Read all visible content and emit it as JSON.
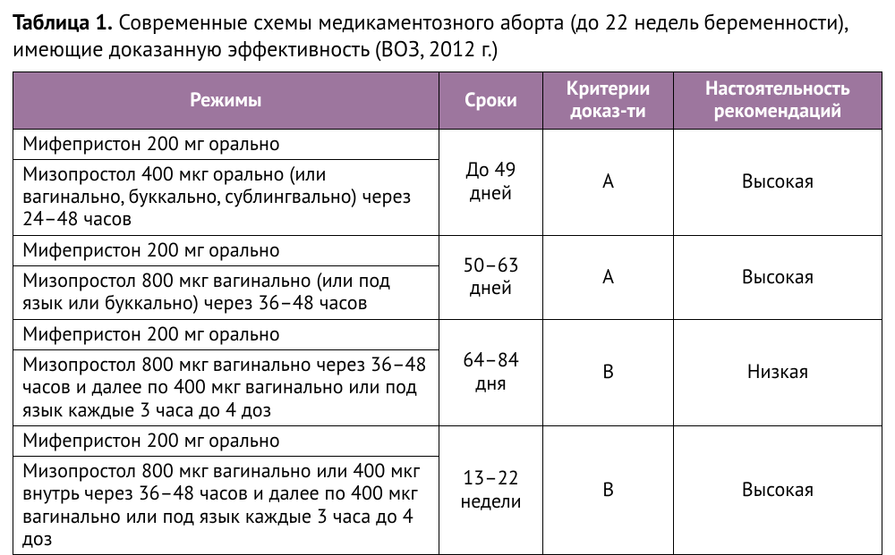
{
  "title_label": "Таблица 1.",
  "title_rest": " Современные схемы медикаментозного аборта (до 22 недель беременности), имеющие доказанную эффективность (ВОЗ, 2012 г.)",
  "header_bg": "#9d769e",
  "header_fg": "#ffffff",
  "columns": [
    "Режимы",
    "Сроки",
    "Критерии доказ-ти",
    "Настоятельность рекомендаций"
  ],
  "groups": [
    {
      "regimens": [
        "Мифепристон 200 мг орально",
        "Мизопростол 400 мкг орально (или вагинально, буккально, сублингвально) через 24–48 часов"
      ],
      "term": "До 49 дней",
      "evidence": "A",
      "strength": "Высокая"
    },
    {
      "regimens": [
        "Мифепристон 200 мг орально",
        "Мизопростол 800 мкг вагинально (или под язык или буккально) через 36–48 часов"
      ],
      "term": "50–63 дней",
      "evidence": "A",
      "strength": "Высокая"
    },
    {
      "regimens": [
        "Мифепристон 200 мг орально",
        "Мизопростол 800 мкг вагинально через 36–48 часов и далее по 400 мкг вагинально или под язык каждые 3 часа до 4 доз"
      ],
      "term": "64–84 дня",
      "evidence": "B",
      "strength": "Низкая"
    },
    {
      "regimens": [
        "Мифепристон 200 мг орально",
        "Мизопростол 800 мкг вагинально или 400 мкг внутрь через 36–48 часов и далее по 400 мкг вагинально или под язык каждые 3 часа до 4 доз"
      ],
      "term": "13–22 недели",
      "evidence": "B",
      "strength": "Высокая"
    }
  ]
}
